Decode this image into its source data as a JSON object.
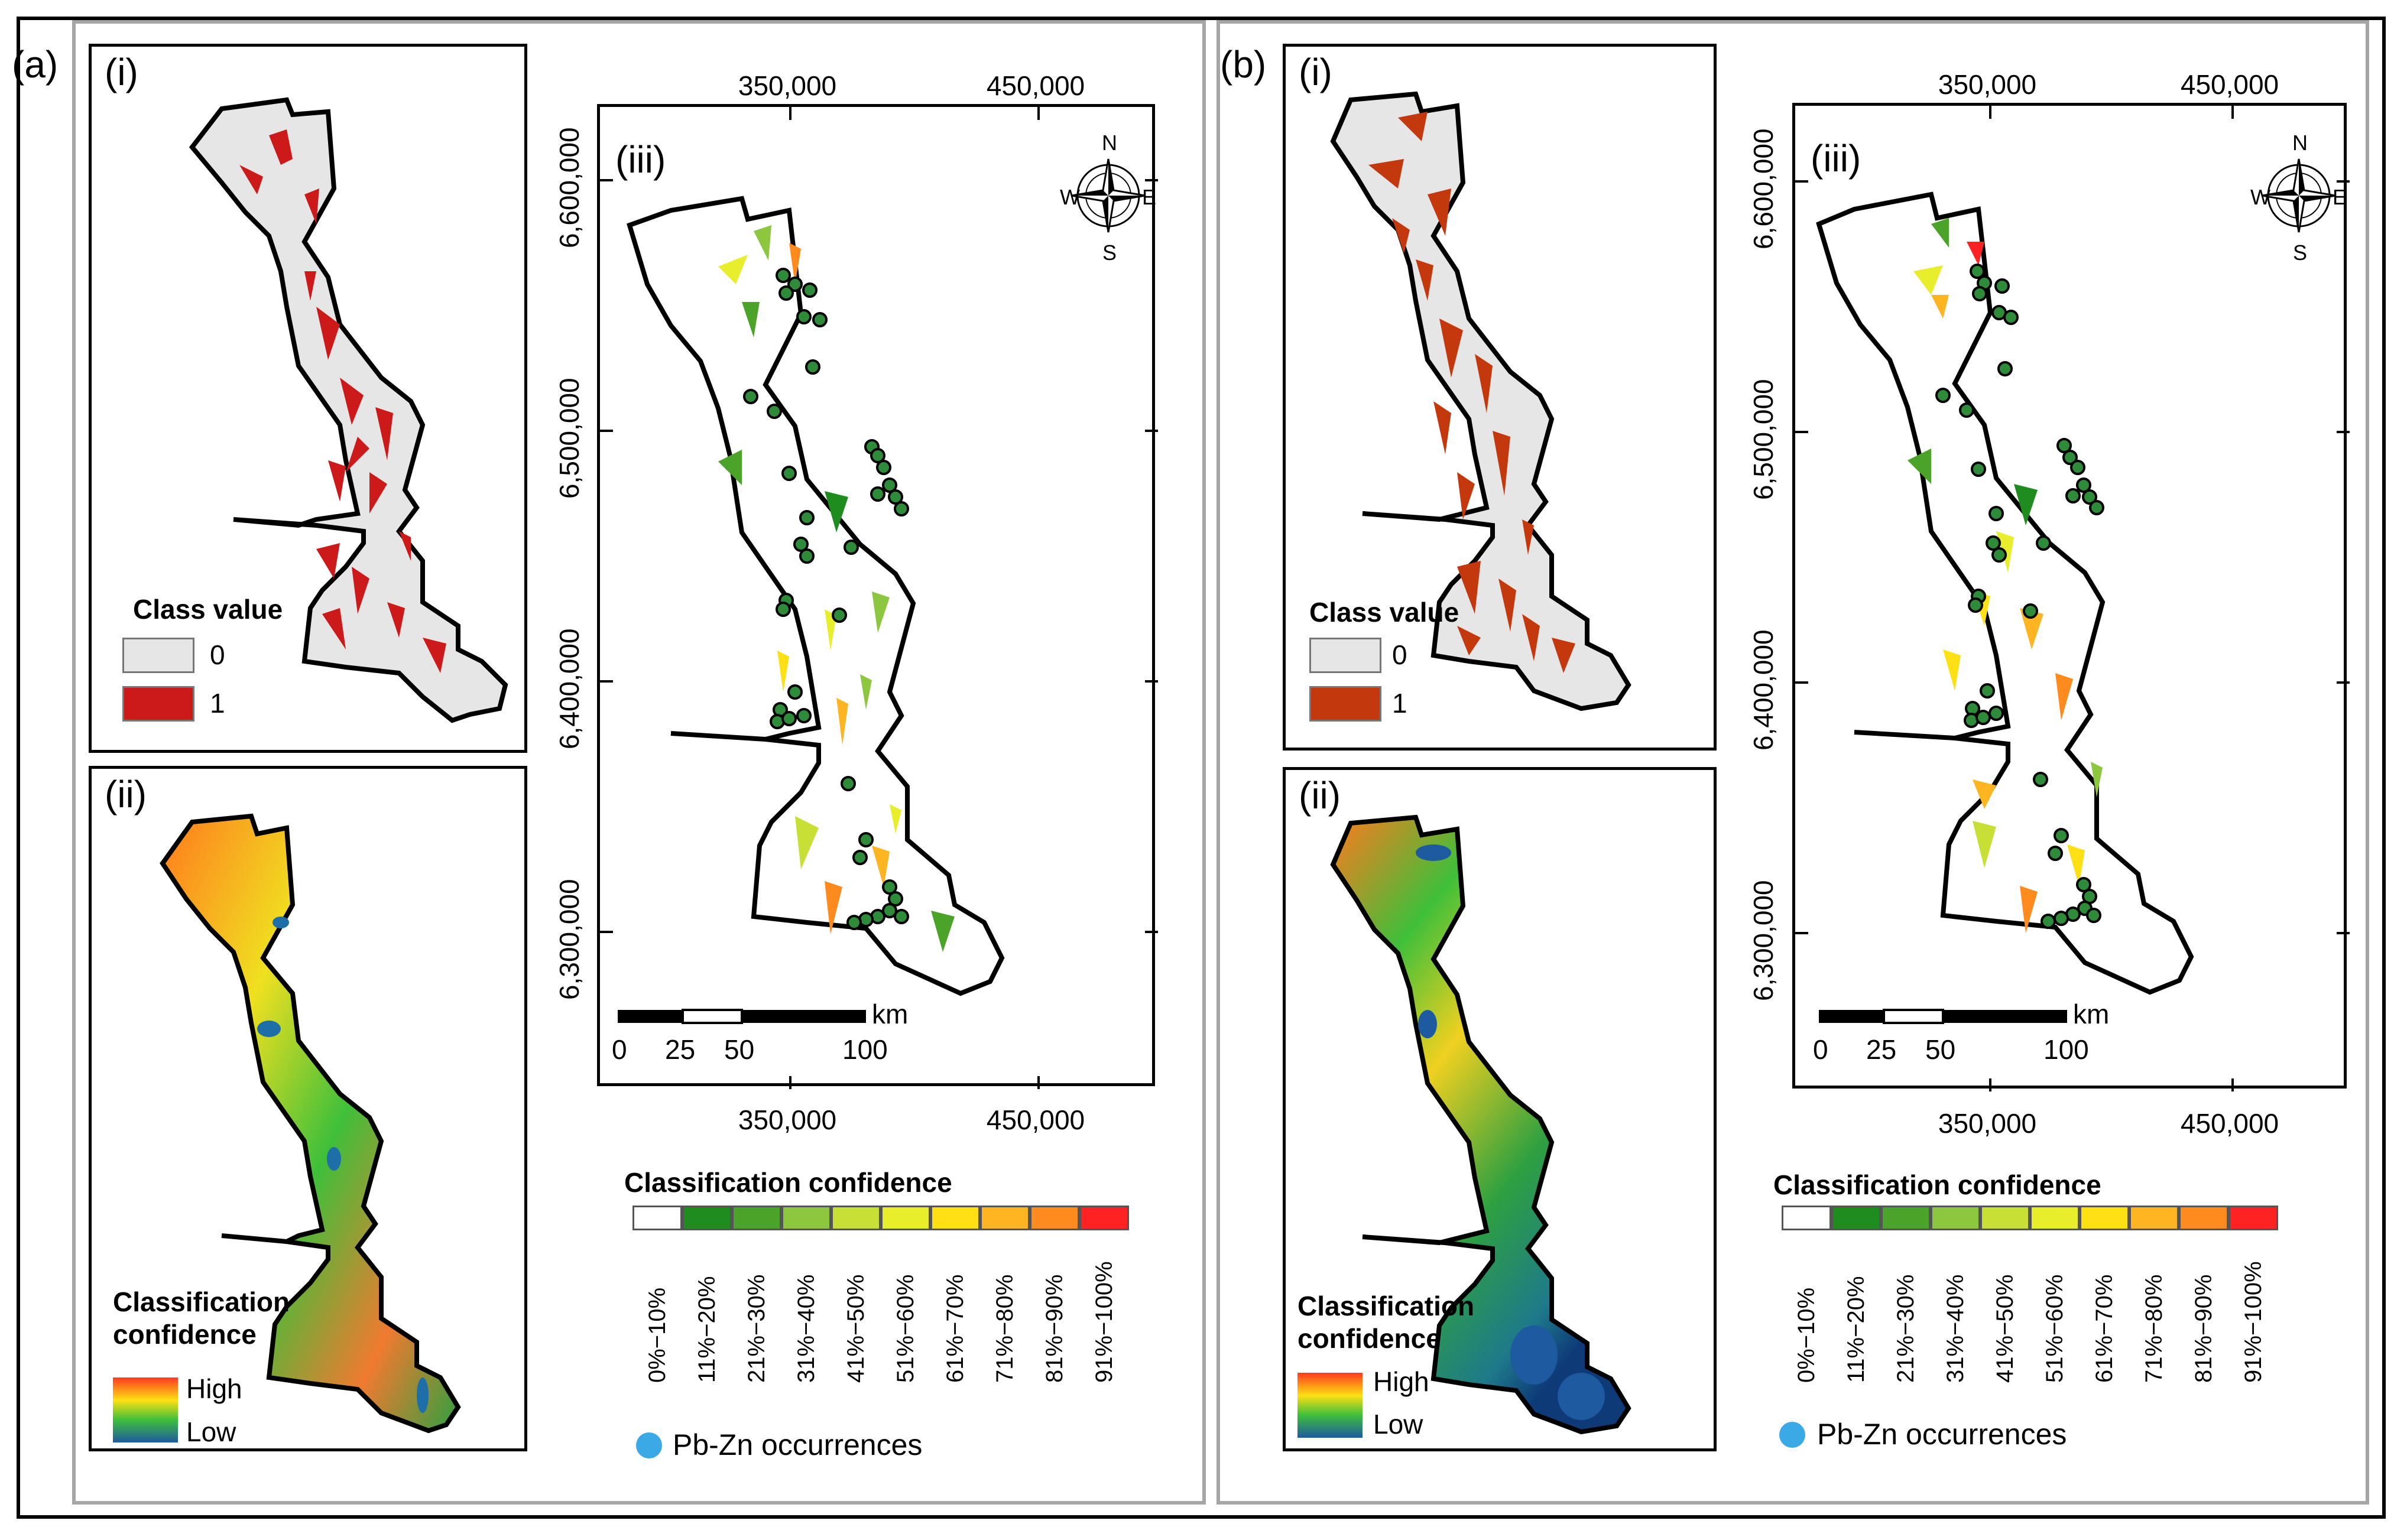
{
  "panels": [
    {
      "letter": "(a)",
      "sub_i": "(i)",
      "sub_ii": "(ii)",
      "sub_iii": "(iii)",
      "class_legend": {
        "title": "Class value",
        "items": [
          {
            "label": "0",
            "color": "#e6e6e6"
          },
          {
            "label": "1",
            "color": "#cc1a1a"
          }
        ]
      },
      "confidence_ramp": {
        "title_line1": "Classification",
        "title_line2": "confidence",
        "high": "High",
        "low": "Low"
      },
      "top_ticks": [
        "350,000",
        "450,000"
      ],
      "bottom_ticks": [
        "350,000",
        "450,000"
      ],
      "left_ticks": [
        "6,600,000",
        "6,500,000",
        "6,400,000",
        "6,300,000"
      ],
      "scalebar": {
        "unit": "km",
        "labels": [
          "0",
          "25",
          "50",
          "100"
        ]
      },
      "compass": {
        "n": "N",
        "e": "E",
        "s": "S",
        "w": "W"
      }
    },
    {
      "letter": "(b)",
      "sub_i": "(i)",
      "sub_ii": "(ii)",
      "sub_iii": "(iii)",
      "class_legend": {
        "title": "Class value",
        "items": [
          {
            "label": "0",
            "color": "#e6e6e6"
          },
          {
            "label": "1",
            "color": "#c4380e"
          }
        ]
      },
      "confidence_ramp": {
        "title_line1": "Classification",
        "title_line2": "confidence",
        "high": "High",
        "low": "Low"
      },
      "top_ticks": [
        "350,000",
        "450,000"
      ],
      "bottom_ticks": [
        "350,000",
        "450,000"
      ],
      "left_ticks": [
        "6,600,000",
        "6,500,000",
        "6,400,000",
        "6,300,000"
      ],
      "scalebar": {
        "unit": "km",
        "labels": [
          "0",
          "25",
          "50",
          "100"
        ]
      },
      "compass": {
        "n": "N",
        "e": "E",
        "s": "S",
        "w": "W"
      }
    }
  ],
  "confidence_legend": {
    "title": "Classification confidence",
    "classes": [
      {
        "label": "0%−10%",
        "color": "#ffffff"
      },
      {
        "label": "11%−20%",
        "color": "#1e8c1e"
      },
      {
        "label": "21%−30%",
        "color": "#4ca32a"
      },
      {
        "label": "31%−40%",
        "color": "#8dc63f"
      },
      {
        "label": "41%−50%",
        "color": "#c8e036"
      },
      {
        "label": "51%−60%",
        "color": "#e8ee2c"
      },
      {
        "label": "61%−70%",
        "color": "#ffe014"
      },
      {
        "label": "71%−80%",
        "color": "#ffb422"
      },
      {
        "label": "81%−90%",
        "color": "#ff8a1e"
      },
      {
        "label": "91%−100%",
        "color": "#ff2222"
      }
    ]
  },
  "occurrences_label": "Pb-Zn occurrences",
  "colors": {
    "occurrence_fill": "#2e8b3a",
    "occurrence_legend": "#3ba9e6",
    "outline": "#000000"
  }
}
